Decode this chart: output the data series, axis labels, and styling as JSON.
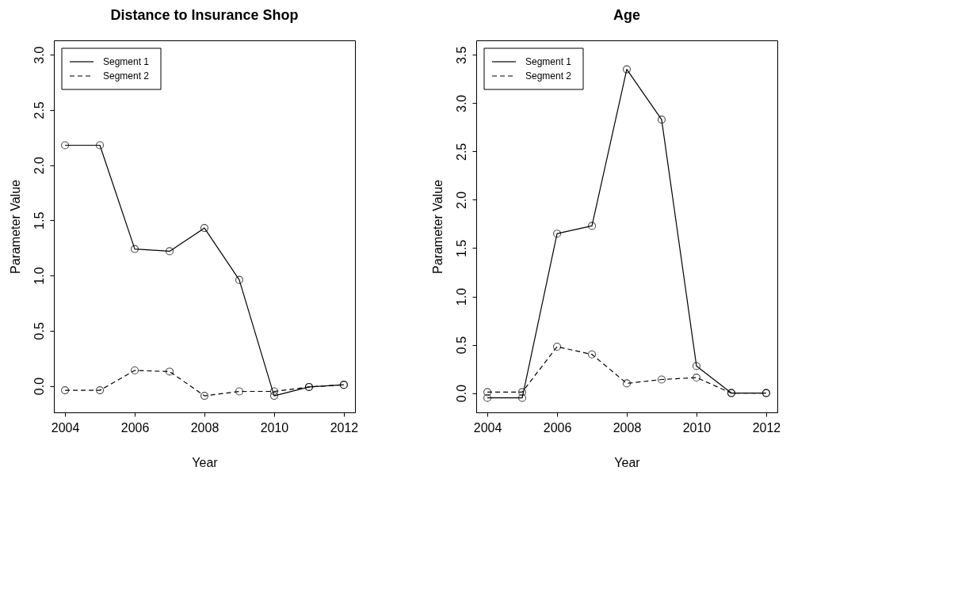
{
  "chart_data": [
    {
      "type": "line",
      "title": "Distance to Insurance Shop",
      "xlabel": "Year",
      "ylabel": "Parameter Value",
      "x": [
        2004,
        2005,
        2006,
        2007,
        2008,
        2009,
        2010,
        2011,
        2012
      ],
      "series": [
        {
          "name": "Segment 1",
          "color": "#000000",
          "line_style": "solid",
          "values": [
            2.18,
            2.18,
            1.24,
            1.22,
            1.43,
            0.96,
            -0.09,
            -0.01,
            0.01
          ]
        },
        {
          "name": "Segment 2",
          "color": "#000000",
          "line_style": "dashed",
          "values": [
            -0.04,
            -0.04,
            0.14,
            0.13,
            -0.09,
            -0.05,
            -0.05,
            -0.01,
            0.01
          ]
        }
      ],
      "xlim": [
        2003.68,
        2012.32
      ],
      "xticks": [
        2004,
        2006,
        2008,
        2010,
        2012
      ],
      "ylim": [
        -0.24,
        3.13
      ],
      "yticks": [
        {
          "value": 0,
          "label": "0.0"
        },
        0.5,
        {
          "value": 1,
          "label": "1.0"
        },
        1.5,
        {
          "value": 2,
          "label": "2.0"
        },
        2.5,
        {
          "value": 3,
          "label": "3.0"
        }
      ],
      "marker": "circle",
      "grid": false,
      "legend": "top left"
    },
    {
      "type": "line",
      "title": "Age",
      "xlabel": "Year",
      "ylabel": "Parameter Value",
      "x": [
        2004,
        2005,
        2006,
        2007,
        2008,
        2009,
        2010,
        2011,
        2012
      ],
      "series": [
        {
          "name": "Segment 1",
          "color": "#000000",
          "line_style": "solid",
          "values": [
            -0.05,
            -0.05,
            1.65,
            1.73,
            3.35,
            2.83,
            0.28,
            0.0,
            0.0
          ]
        },
        {
          "name": "Segment 2",
          "color": "#000000",
          "line_style": "dashed",
          "values": [
            0.01,
            0.01,
            0.48,
            0.4,
            0.1,
            0.14,
            0.16,
            0.0,
            0.0
          ]
        }
      ],
      "xlim": [
        2003.68,
        2012.32
      ],
      "xticks": [
        2004,
        2006,
        2008,
        2010,
        2012
      ],
      "ylim": [
        -0.2,
        3.65
      ],
      "yticks": [
        {
          "value": 0,
          "label": "0.0"
        },
        0.5,
        {
          "value": 1,
          "label": "1.0"
        },
        1.5,
        {
          "value": 2,
          "label": "2.0"
        },
        2.5,
        {
          "value": 3,
          "label": "3.0"
        },
        3.5
      ],
      "marker": "circle",
      "grid": false,
      "legend": "top left"
    }
  ]
}
